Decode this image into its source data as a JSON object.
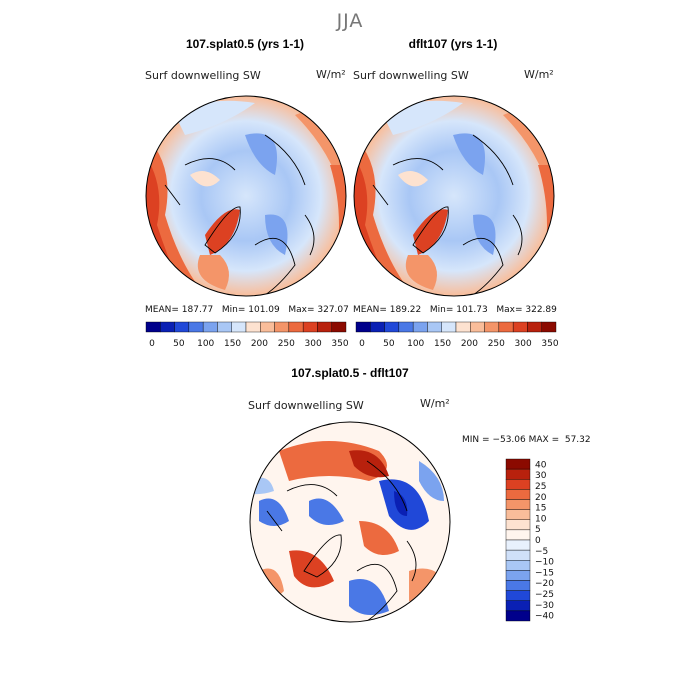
{
  "season": "JJA",
  "panels": [
    {
      "title": "107.splat0.5 (yrs 1-1)",
      "variable": "Surf downwelling SW",
      "units": "W/m²",
      "mean": "187.77",
      "min": "101.09",
      "max": "327.07"
    },
    {
      "title": "dflt107 (yrs 1-1)",
      "variable": "Surf downwelling SW",
      "units": "W/m²",
      "mean": "189.22",
      "min": "101.73",
      "max": "322.89"
    }
  ],
  "diff": {
    "title": "107.splat0.5 - dflt107",
    "variable": "Surf downwelling SW",
    "units": "W/m²",
    "min": "−53.06",
    "max": "57.32"
  },
  "labels": {
    "mean": "MEAN=",
    "min": "Min=",
    "max": "Max=",
    "dmin": "MIN =",
    "dmax": "MAX ="
  },
  "chart_data": [
    {
      "type": "heatmap",
      "title": "107.splat0.5 (yrs 1-1)",
      "projection": "polar stereographic (Arctic)",
      "variable": "Surf downwelling SW",
      "units": "W/m^2",
      "mean": 187.77,
      "min": 101.09,
      "max": 327.07,
      "colorbar": {
        "levels": [
          0,
          50,
          100,
          150,
          200,
          250,
          300,
          350
        ],
        "tick_labels": [
          "0",
          "50",
          "100",
          "150",
          "200",
          "250",
          "300",
          "350"
        ],
        "colors": [
          "#00008b",
          "#0a20b4",
          "#2048d8",
          "#4a78e6",
          "#7ba3ef",
          "#a9c7f5",
          "#d6e6fb",
          "#fde2d0",
          "#f9bd9a",
          "#f49569",
          "#ec6a3f",
          "#dc4122",
          "#b8210d",
          "#8b0a00"
        ]
      }
    },
    {
      "type": "heatmap",
      "title": "dflt107 (yrs 1-1)",
      "projection": "polar stereographic (Arctic)",
      "variable": "Surf downwelling SW",
      "units": "W/m^2",
      "mean": 189.22,
      "min": 101.73,
      "max": 322.89,
      "colorbar": {
        "levels": [
          0,
          50,
          100,
          150,
          200,
          250,
          300,
          350
        ],
        "tick_labels": [
          "0",
          "50",
          "100",
          "150",
          "200",
          "250",
          "300",
          "350"
        ],
        "colors": [
          "#00008b",
          "#0a20b4",
          "#2048d8",
          "#4a78e6",
          "#7ba3ef",
          "#a9c7f5",
          "#d6e6fb",
          "#fde2d0",
          "#f9bd9a",
          "#f49569",
          "#ec6a3f",
          "#dc4122",
          "#b8210d",
          "#8b0a00"
        ]
      }
    },
    {
      "type": "heatmap",
      "title": "107.splat0.5 - dflt107",
      "projection": "polar stereographic (Arctic)",
      "variable": "Surf downwelling SW",
      "units": "W/m^2",
      "min": -53.06,
      "max": 57.32,
      "colorbar": {
        "levels": [
          40,
          30,
          25,
          20,
          15,
          10,
          5,
          0,
          -5,
          -10,
          -15,
          -20,
          -25,
          -30,
          -40
        ],
        "tick_labels": [
          "40",
          "30",
          "25",
          "20",
          "15",
          "10",
          "5",
          "0",
          "−5",
          "−10",
          "−15",
          "−20",
          "−25",
          "−30",
          "−40"
        ],
        "colors": [
          "#8b0a00",
          "#b8210d",
          "#dc4122",
          "#ec6a3f",
          "#f49569",
          "#f9bd9a",
          "#fde2d0",
          "#fff5ee",
          "#e8f1fd",
          "#cfe0f9",
          "#a9c7f5",
          "#7ba3ef",
          "#4a78e6",
          "#2048d8",
          "#0a20b4",
          "#00008b"
        ]
      }
    }
  ]
}
